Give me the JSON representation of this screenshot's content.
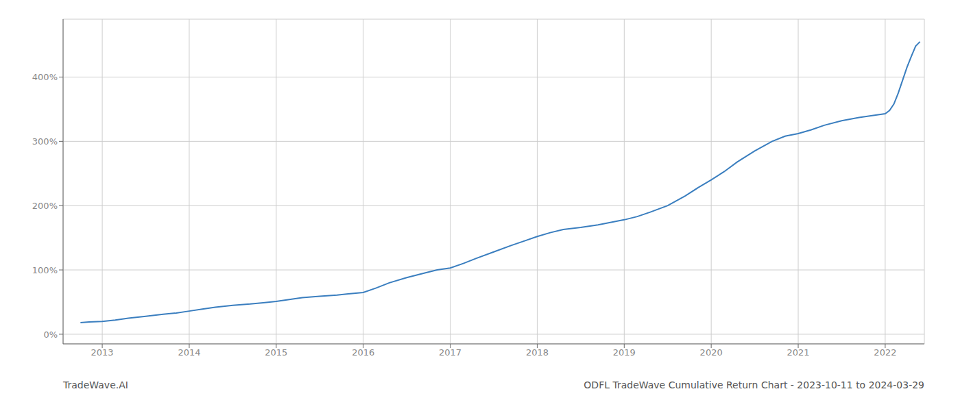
{
  "chart_data": {
    "type": "line",
    "title": "ODFL TradeWave Cumulative Return Chart - 2023-10-11 to 2024-03-29",
    "annotations": [
      "TradeWave.AI"
    ],
    "color": "#3a7ebf",
    "grid": true,
    "xlim": [
      2012.55,
      2022.45
    ],
    "ylim": [
      -15,
      490
    ],
    "xticks": [
      2013,
      2014,
      2015,
      2016,
      2017,
      2018,
      2019,
      2020,
      2021,
      2022
    ],
    "yticks": [
      {
        "value": 0,
        "label": "0%"
      },
      {
        "value": 100,
        "label": "100%"
      },
      {
        "value": 200,
        "label": "200%"
      },
      {
        "value": 300,
        "label": "300%"
      },
      {
        "value": 400,
        "label": "400%"
      }
    ],
    "x": [
      2012.75,
      2012.85,
      2013.0,
      2013.15,
      2013.3,
      2013.5,
      2013.7,
      2013.85,
      2014.0,
      2014.15,
      2014.3,
      2014.5,
      2014.7,
      2014.85,
      2015.0,
      2015.15,
      2015.3,
      2015.5,
      2015.7,
      2015.85,
      2016.0,
      2016.15,
      2016.3,
      2016.5,
      2016.7,
      2016.85,
      2017.0,
      2017.15,
      2017.3,
      2017.5,
      2017.7,
      2017.85,
      2018.0,
      2018.15,
      2018.3,
      2018.5,
      2018.7,
      2018.85,
      2019.0,
      2019.15,
      2019.3,
      2019.5,
      2019.7,
      2019.85,
      2020.0,
      2020.15,
      2020.3,
      2020.5,
      2020.7,
      2020.85,
      2021.0,
      2021.15,
      2021.3,
      2021.5,
      2021.7,
      2021.85,
      2022.0,
      2022.05,
      2022.1,
      2022.15,
      2022.2,
      2022.25,
      2022.3,
      2022.35,
      2022.4
    ],
    "values": [
      18,
      19,
      20,
      22,
      25,
      28,
      31,
      33,
      36,
      39,
      42,
      45,
      47,
      49,
      51,
      54,
      57,
      59,
      61,
      63,
      65,
      72,
      80,
      88,
      95,
      100,
      103,
      110,
      118,
      128,
      138,
      145,
      152,
      158,
      163,
      166,
      170,
      174,
      178,
      183,
      190,
      200,
      215,
      228,
      240,
      253,
      268,
      285,
      300,
      308,
      312,
      318,
      325,
      332,
      337,
      340,
      343,
      348,
      358,
      375,
      395,
      415,
      432,
      448,
      455
    ]
  }
}
